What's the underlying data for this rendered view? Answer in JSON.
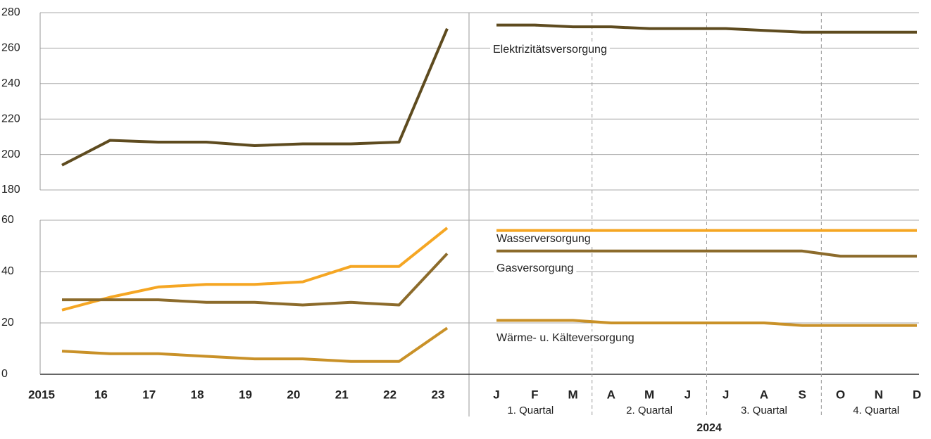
{
  "chart_data": {
    "type": "line",
    "categories": [
      "2015",
      "16",
      "17",
      "18",
      "19",
      "20",
      "21",
      "22",
      "23"
    ],
    "months": [
      "J",
      "F",
      "M",
      "A",
      "M",
      "J",
      "J",
      "A",
      "S",
      "O",
      "N",
      "D"
    ],
    "quarters": [
      "1. Quartal",
      "2. Quartal",
      "3. Quartal",
      "4. Quartal"
    ],
    "period_label": "2024",
    "grid": true,
    "panels": [
      {
        "ylim": [
          180,
          280
        ],
        "yticks": [
          180,
          200,
          220,
          240,
          260,
          280
        ]
      },
      {
        "ylim": [
          0,
          60
        ],
        "yticks": [
          0,
          20,
          40,
          60
        ]
      }
    ],
    "series": [
      {
        "name": "Elektrizitätsversorgung",
        "color": "#5e4b1f",
        "panel": 0,
        "values": [
          194,
          208,
          207,
          207,
          205,
          206,
          206,
          207,
          271
        ],
        "monthly_values": [
          273,
          273,
          272,
          272,
          271,
          271,
          271,
          270,
          269,
          269,
          269,
          269
        ]
      },
      {
        "name": "Wasserversorgung",
        "color": "#f5a623",
        "panel": 1,
        "values": [
          25,
          30,
          34,
          35,
          35,
          36,
          42,
          42,
          57
        ],
        "monthly_values": [
          56,
          56,
          56,
          56,
          56,
          56,
          56,
          56,
          56,
          56,
          56,
          56
        ]
      },
      {
        "name": "Gasversorgung",
        "color": "#8c6b2b",
        "panel": 1,
        "values": [
          29,
          29,
          29,
          28,
          28,
          27,
          28,
          27,
          47
        ],
        "monthly_values": [
          48,
          48,
          48,
          48,
          48,
          48,
          48,
          48,
          48,
          46,
          46,
          46
        ]
      },
      {
        "name": "Wärme- u. Kälteversorgung",
        "color": "#c99128",
        "panel": 1,
        "values": [
          9,
          8,
          8,
          7,
          6,
          6,
          5,
          5,
          18
        ],
        "monthly_values": [
          21,
          21,
          21,
          20,
          20,
          20,
          20,
          20,
          19,
          19,
          19,
          19
        ]
      }
    ]
  }
}
